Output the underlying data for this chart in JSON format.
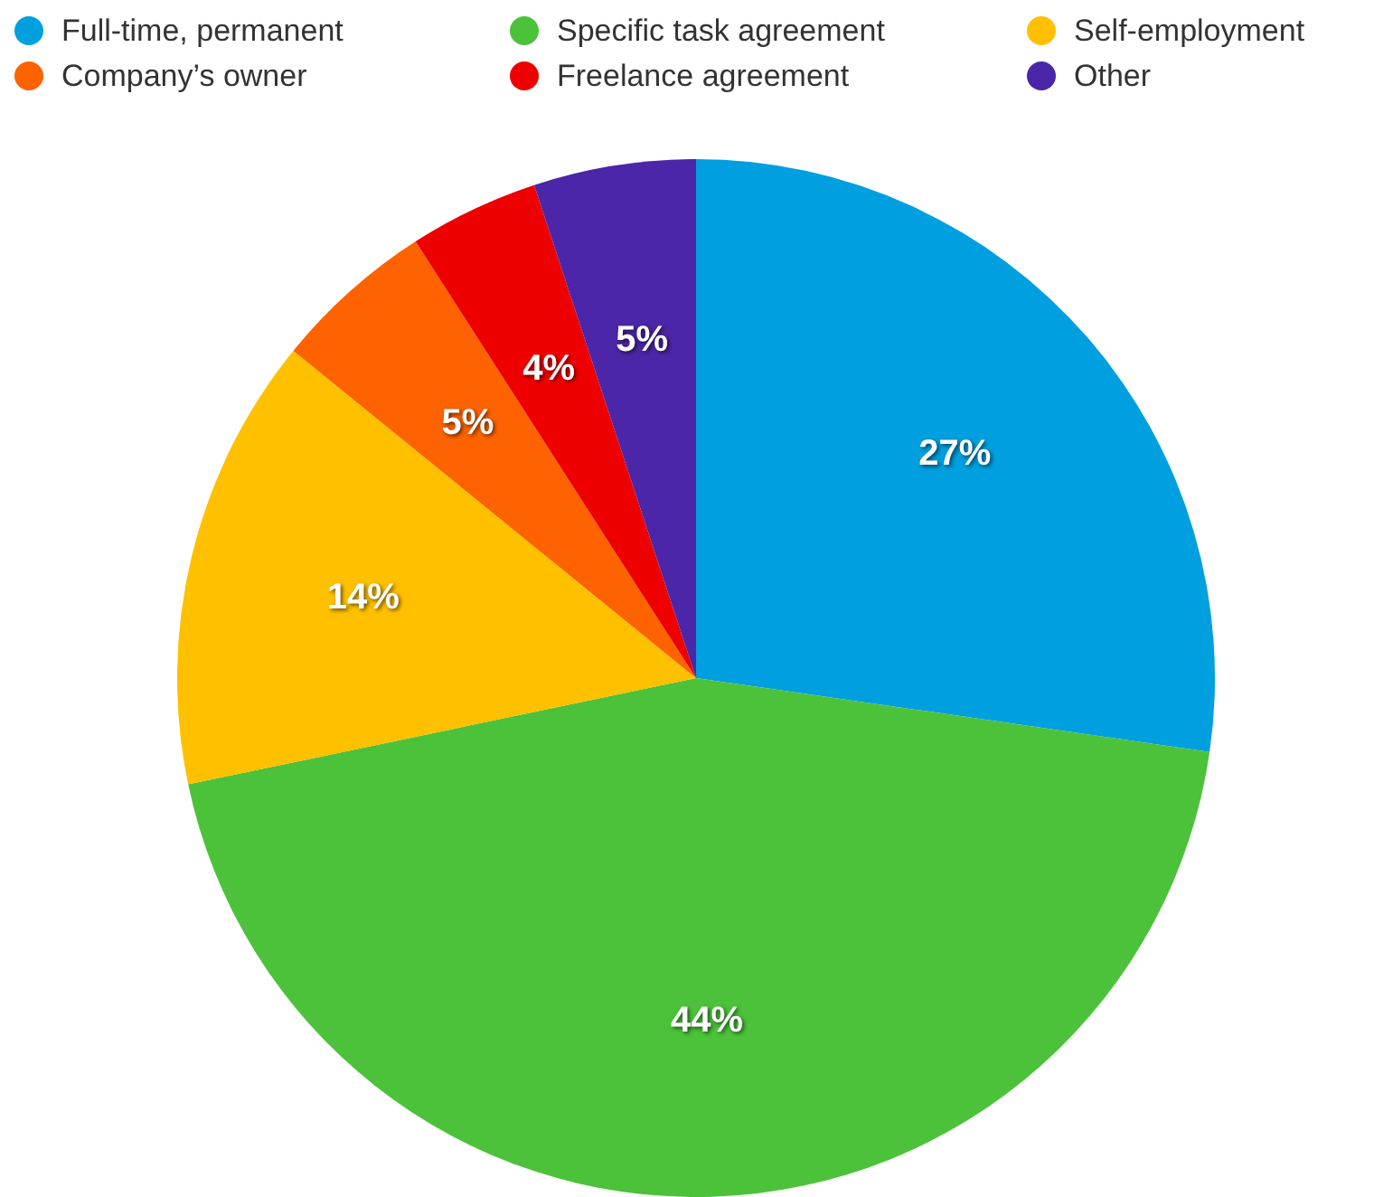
{
  "chart_data": {
    "type": "pie",
    "categories": [
      "Full-time, permanent",
      "Specific task agreement",
      "Self-employment",
      "Company’s owner",
      "Freelance agreement",
      "Other"
    ],
    "values": [
      27,
      44,
      14,
      5,
      4,
      5
    ],
    "value_labels": [
      "27%",
      "44%",
      "14%",
      "5%",
      "4%",
      "5%"
    ],
    "colors": [
      "#009fdf",
      "#4cc23a",
      "#ffc000",
      "#ff6200",
      "#ee0000",
      "#4b26a8"
    ],
    "legend": "top"
  }
}
